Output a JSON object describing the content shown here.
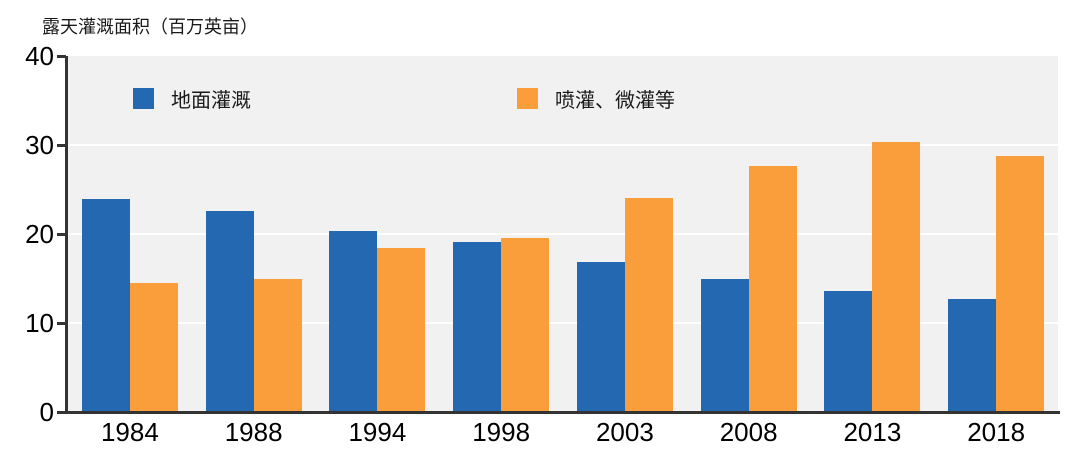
{
  "chart_data": {
    "type": "bar",
    "title": "露天灌溉面积（百万英亩）",
    "categories": [
      "1984",
      "1988",
      "1994",
      "1998",
      "2003",
      "2008",
      "2013",
      "2018"
    ],
    "series": [
      {
        "name": "地面灌溉",
        "color": "#2368b0",
        "values": [
          23.9,
          22.6,
          20.3,
          19.1,
          16.9,
          15.0,
          13.6,
          12.7
        ]
      },
      {
        "name": "喷灌、微灌等",
        "color": "#fa9d3b",
        "values": [
          14.5,
          15.0,
          18.4,
          19.5,
          24.1,
          27.6,
          30.3,
          28.8
        ]
      }
    ],
    "ylim": [
      0,
      40
    ],
    "yticks": [
      0,
      10,
      20,
      30,
      40
    ],
    "grid": true,
    "legend_position": "top-inside",
    "colors": {
      "plot_bg": "#f1f1f1",
      "gridline": "#ffffff",
      "axis": "#333333",
      "text": "#000000"
    }
  }
}
